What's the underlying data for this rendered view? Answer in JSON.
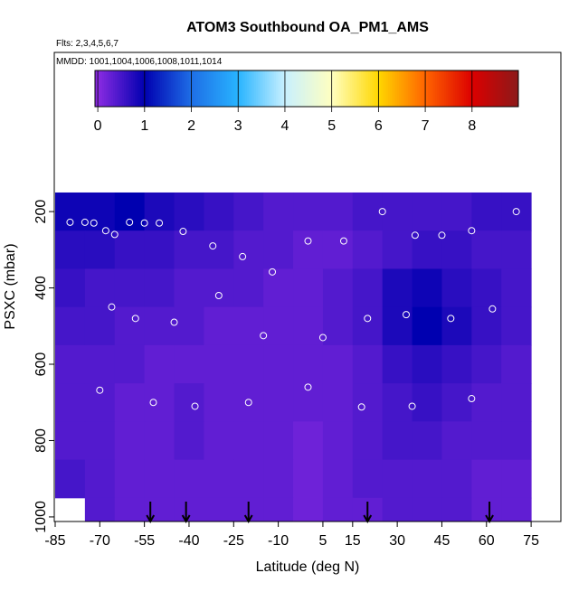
{
  "chart_data": {
    "type": "curtain",
    "title": "ATOM3 Southbound OA_PM1_AMS",
    "subtitle": "Flts: 2,3,4,5,6,7",
    "annotation": "MMDD: 1001,1004,1006,1008,1011,1014",
    "x_label": "Latitude (deg N)",
    "y_label": "PSXC (mbar)",
    "xlim": [
      -85.3,
      85
    ],
    "ylim": [
      1012,
      -217
    ],
    "xticks": [
      -85,
      -70,
      -55,
      -40,
      -25,
      -10,
      5,
      15,
      30,
      45,
      60,
      75
    ],
    "yticks": [
      200,
      400,
      600,
      800,
      1000
    ],
    "lat_centers": [
      -80,
      -70,
      -60,
      -50,
      -40,
      -30,
      -20,
      -10,
      0,
      10,
      20,
      30,
      40,
      50,
      60,
      70
    ],
    "pressure_levels": [
      200,
      300,
      400,
      500,
      600,
      700,
      800,
      900,
      1000
    ],
    "values": [
      [
        0.9,
        0.9,
        1.0,
        0.8,
        0.7,
        0.6,
        0.5,
        0.4,
        0.4,
        0.4,
        0.5,
        0.5,
        0.5,
        0.5,
        0.6,
        0.6
      ],
      [
        0.7,
        0.7,
        0.6,
        0.6,
        0.5,
        0.5,
        0.4,
        0.4,
        0.3,
        0.3,
        0.4,
        0.5,
        0.6,
        0.6,
        0.5,
        0.5
      ],
      [
        0.6,
        0.5,
        0.5,
        0.5,
        0.4,
        0.4,
        0.4,
        0.3,
        0.3,
        0.4,
        0.5,
        0.8,
        0.9,
        0.7,
        0.6,
        0.5
      ],
      [
        0.5,
        0.5,
        0.4,
        0.4,
        0.4,
        0.3,
        0.3,
        0.3,
        0.3,
        0.4,
        0.5,
        0.8,
        1.0,
        0.8,
        0.6,
        0.5
      ],
      [
        0.4,
        0.4,
        0.4,
        0.3,
        0.3,
        0.3,
        0.3,
        0.3,
        0.3,
        0.3,
        0.4,
        0.6,
        0.7,
        0.6,
        0.5,
        0.4
      ],
      [
        0.4,
        0.4,
        0.3,
        0.3,
        0.4,
        0.3,
        0.3,
        0.3,
        0.3,
        0.3,
        0.4,
        0.5,
        0.6,
        0.5,
        0.4,
        0.4
      ],
      [
        0.4,
        0.4,
        0.3,
        0.3,
        0.4,
        0.3,
        0.3,
        0.3,
        0.2,
        0.3,
        0.4,
        0.5,
        0.5,
        0.4,
        0.4,
        0.4
      ],
      [
        0.5,
        0.4,
        0.3,
        0.3,
        0.3,
        0.3,
        0.3,
        0.3,
        0.2,
        0.3,
        0.4,
        0.4,
        0.4,
        0.4,
        0.3,
        0.3
      ],
      [
        null,
        0.4,
        0.3,
        0.3,
        0.3,
        0.3,
        0.3,
        0.3,
        0.2,
        0.3,
        0.3,
        0.4,
        0.4,
        0.4,
        0.3,
        0.3
      ]
    ],
    "colormap": {
      "values": [
        0,
        1,
        2,
        3,
        4,
        5,
        6,
        7,
        8,
        9
      ],
      "colors": [
        "#8a2be2",
        "#0000b0",
        "#1e6ee6",
        "#28b4ff",
        "#c8f0ff",
        "#ffffc0",
        "#ffd700",
        "#ff6400",
        "#dc0000",
        "#8b1a1a"
      ]
    },
    "colorbar_lim": [
      -0.06,
      8.99
    ],
    "colorbar_ticks": [
      0,
      1,
      2,
      3,
      4,
      5,
      6,
      7,
      8
    ],
    "sample_points": {
      "lat": [
        -80,
        -75,
        -72,
        -68,
        -65,
        -60,
        -55,
        -50,
        -42,
        -32,
        -22,
        -12,
        0,
        12,
        25,
        36,
        45,
        55,
        70,
        -66,
        -58,
        -45,
        -30,
        -15,
        5,
        20,
        33,
        48,
        62,
        -70,
        -52,
        -38,
        -20,
        0,
        18,
        35,
        55
      ],
      "p": [
        228,
        228,
        230,
        250,
        260,
        228,
        230,
        230,
        252,
        290,
        318,
        358,
        277,
        277,
        200,
        262,
        262,
        250,
        200,
        450,
        480,
        490,
        420,
        525,
        530,
        480,
        470,
        480,
        455,
        668,
        700,
        710,
        700,
        660,
        712,
        710,
        690
      ],
      "color": "#ffffff"
    },
    "profile_lats": [
      -53,
      -41,
      -20,
      20,
      61
    ]
  }
}
